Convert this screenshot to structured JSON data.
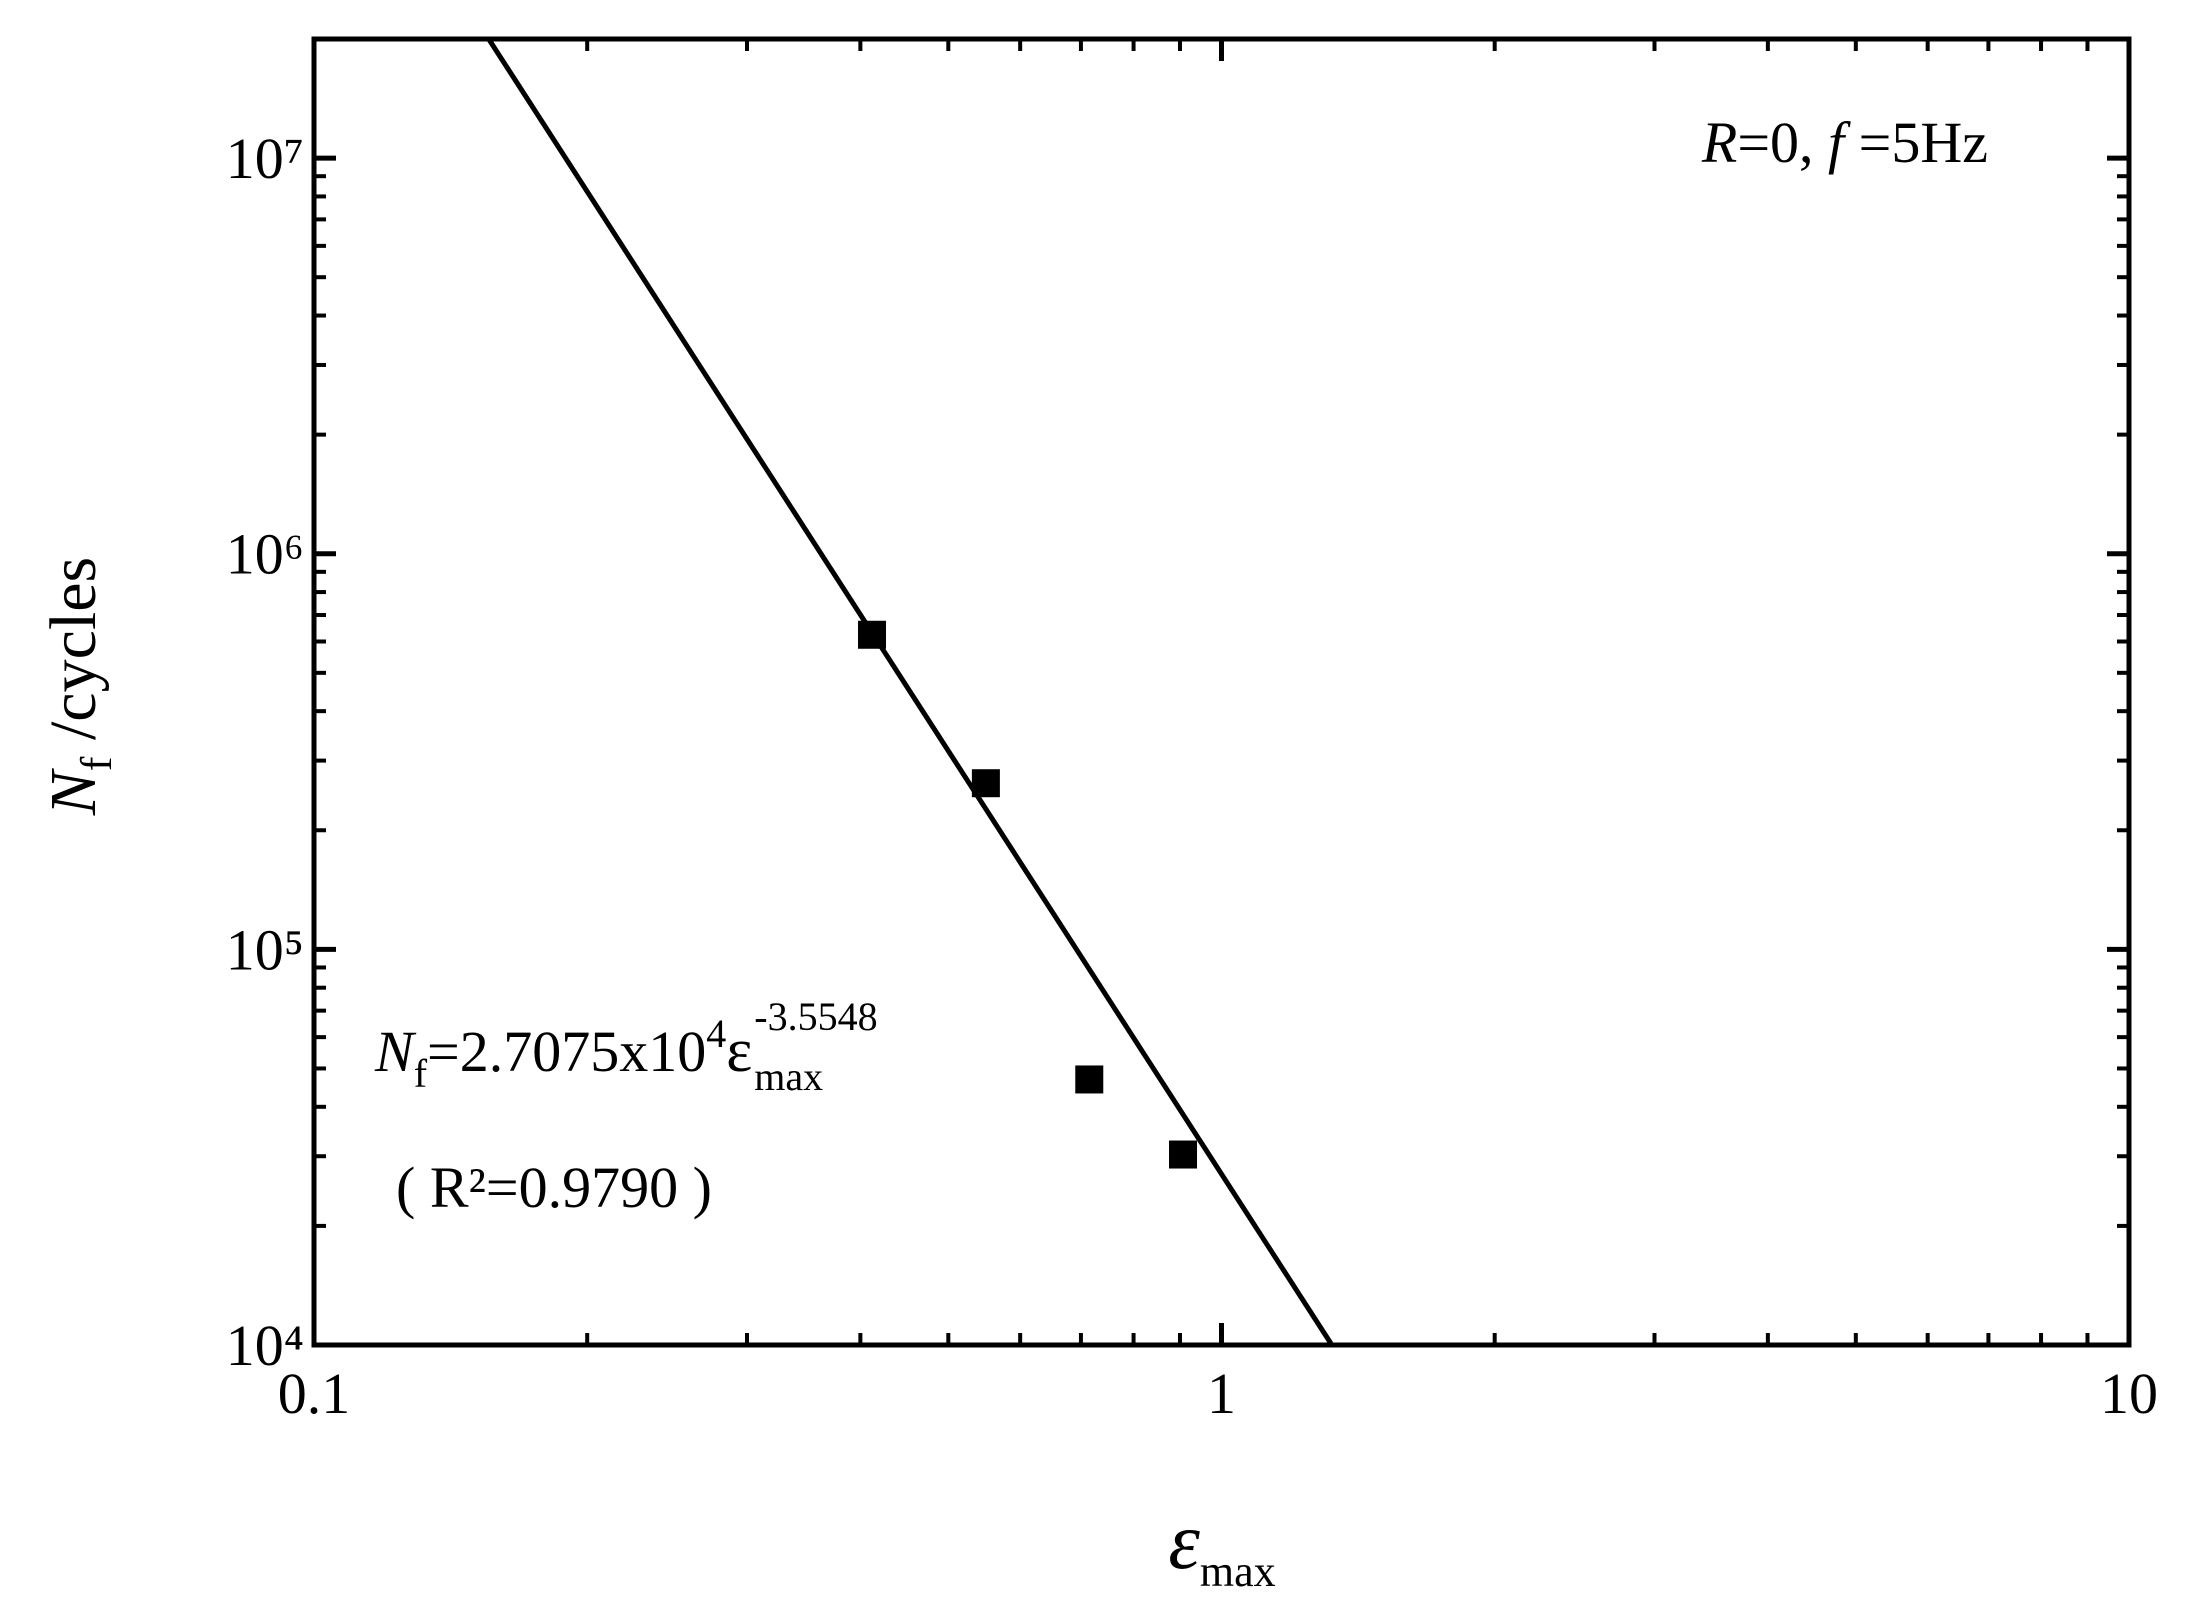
{
  "chart_data": {
    "type": "scatter",
    "xlabel": [
      "ε",
      "max"
    ],
    "ylabel": [
      "N",
      "f",
      " /cycles"
    ],
    "xscale": "log",
    "yscale": "log",
    "xlim": [
      0.1,
      10
    ],
    "ylim": [
      10000,
      20000000
    ],
    "xticks": [
      0.1,
      1,
      10
    ],
    "yticks": [
      {
        "value": 10000,
        "label": "10⁴"
      },
      {
        "value": 100000,
        "label": "10⁵"
      },
      {
        "value": 1000000,
        "label": "10⁶"
      },
      {
        "value": 10000000,
        "label": "10⁷"
      }
    ],
    "minor_ticks": true,
    "mirror_ticks": true,
    "grid": false,
    "series": [
      {
        "style": "marker",
        "marker": "square",
        "color": "#000000",
        "x": [
          0.412,
          0.55,
          0.715,
          0.907
        ],
        "values": [
          624000,
          263000,
          46900,
          30300
        ]
      },
      {
        "style": "line",
        "color": "#000000",
        "x": [
          0.156,
          1.32
        ],
        "values": [
          19900000,
          10088
        ]
      }
    ],
    "annotations": {
      "condition": [
        "R",
        "=0, ",
        "f",
        " =5Hz"
      ],
      "equation": [
        "N",
        "f",
        "=2.7075x10",
        "4",
        "ε",
        "-3.5548",
        "max"
      ],
      "r_squared": "( R²=0.9790 )"
    }
  }
}
